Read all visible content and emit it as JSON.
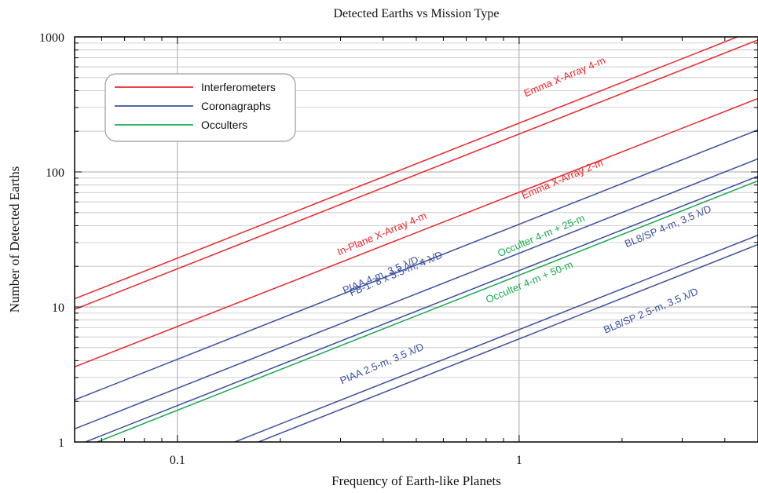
{
  "chart_data": {
    "type": "line",
    "title": "Detected Earths vs Mission Type",
    "xlabel": "Frequency of Earth-like Planets",
    "ylabel": "Number of Detected Earths",
    "xscale": "log",
    "yscale": "log",
    "xlim": [
      0.05,
      5
    ],
    "ylim": [
      1,
      1000
    ],
    "xticks": [
      {
        "value": 0.1,
        "label": "0.1"
      },
      {
        "value": 1,
        "label": "1"
      }
    ],
    "yticks": [
      {
        "value": 1,
        "label": "1"
      },
      {
        "value": 10,
        "label": "10"
      },
      {
        "value": 100,
        "label": "100"
      },
      {
        "value": 1000,
        "label": "1000"
      }
    ],
    "grid": true,
    "legend": {
      "position": "top-left",
      "entries": [
        {
          "label": "Interferometers",
          "color": "#e8262b"
        },
        {
          "label": "Coronagraphs",
          "color": "#3a4f9e"
        },
        {
          "label": "Occulters",
          "color": "#1aa84f"
        }
      ]
    },
    "series": [
      {
        "group": "Interferometers",
        "color": "#e8262b",
        "x": [
          0.05,
          5
        ],
        "y": [
          11.5,
          1150
        ]
      },
      {
        "group": "Interferometers",
        "color": "#e8262b",
        "x": [
          0.05,
          5
        ],
        "y": [
          9.6,
          950
        ]
      },
      {
        "group": "Interferometers",
        "color": "#e8262b",
        "x": [
          0.05,
          5
        ],
        "y": [
          3.6,
          350
        ]
      },
      {
        "group": "Coronagraphs",
        "color": "#3a4f9e",
        "x": [
          0.05,
          5
        ],
        "y": [
          2.05,
          205
        ]
      },
      {
        "group": "Coronagraphs",
        "color": "#3a4f9e",
        "x": [
          0.05,
          5
        ],
        "y": [
          1.25,
          125
        ]
      },
      {
        "group": "Coronagraphs",
        "color": "#3a4f9e",
        "x": [
          0.05,
          5
        ],
        "y": [
          0.93,
          93
        ]
      },
      {
        "group": "Occulters",
        "color": "#1aa84f",
        "x": [
          0.05,
          5
        ],
        "y": [
          0.86,
          86
        ]
      },
      {
        "group": "Coronagraphs",
        "color": "#3a4f9e",
        "x": [
          0.05,
          5
        ],
        "y": [
          0.34,
          34
        ]
      },
      {
        "group": "Coronagraphs",
        "color": "#3a4f9e",
        "x": [
          0.05,
          5
        ],
        "y": [
          0.29,
          29
        ]
      }
    ],
    "annotations": [
      {
        "text": "In-Plane X-Array 4-m",
        "color": "#e8262b",
        "x": 0.4,
        "y": 33,
        "angle": -23
      },
      {
        "text": "Emma X-Array 4-m",
        "color": "#e8262b",
        "x": 1.37,
        "y": 480,
        "angle": -23
      },
      {
        "text": "Emma X-Array 2-m",
        "color": "#e8262b",
        "x": 1.35,
        "y": 84,
        "angle": -23
      },
      {
        "text": "FB-1: 8 x 3.5-m, 4 λ/D",
        "color": "#3a4f9e",
        "x": 0.44,
        "y": 16.7,
        "angle": -23
      },
      {
        "text": "PIAA 4-m, 3.5 λ/D;",
        "color": "#3a4f9e",
        "x": 0.4,
        "y": 16.5,
        "angle": -23
      },
      {
        "text": "Occulter 4-m + 25-m",
        "color": "#1aa84f",
        "x": 1.17,
        "y": 32,
        "angle": -23
      },
      {
        "text": "BL8/SP 4-m, 3.5 λ/D",
        "color": "#3a4f9e",
        "x": 2.75,
        "y": 37.5,
        "angle": -23
      },
      {
        "text": "Occulter 4-m + 50-m",
        "color": "#1aa84f",
        "x": 1.08,
        "y": 14.5,
        "angle": -23
      },
      {
        "text": "PIAA 2.5-m, 3.5  λ/D",
        "color": "#3a4f9e",
        "x": 0.4,
        "y": 3.6,
        "angle": -23
      },
      {
        "text": "BL8/SP 2.5-m, 3.5 λ/D",
        "color": "#3a4f9e",
        "x": 2.45,
        "y": 8.9,
        "angle": -23
      }
    ]
  }
}
